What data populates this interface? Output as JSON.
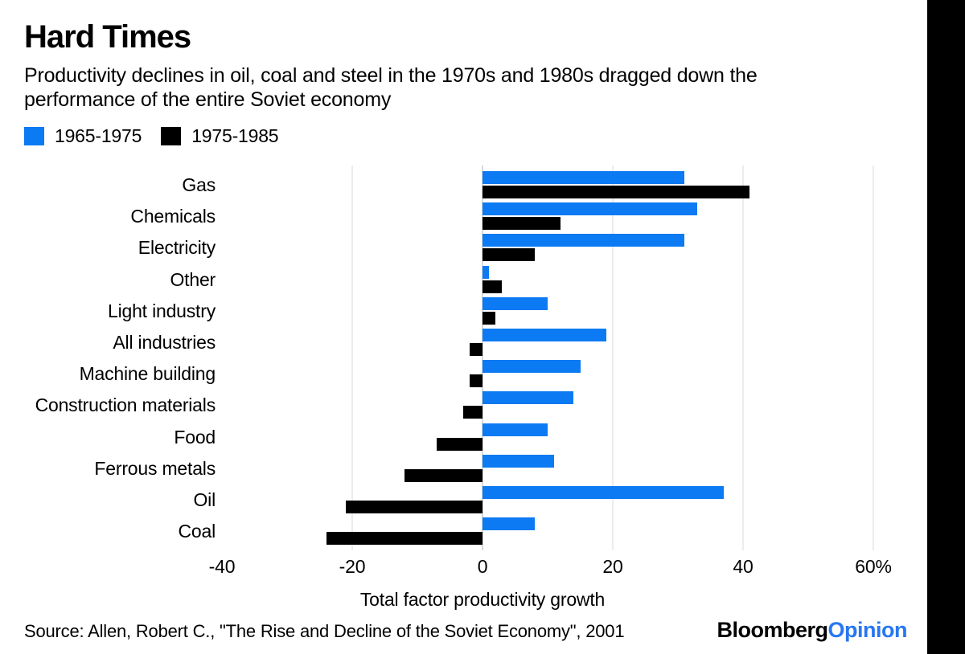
{
  "header": {
    "title": "Hard Times",
    "subtitle_line1": "Productivity declines in oil, coal and steel in the 1970s and 1980s dragged down the",
    "subtitle_line2": "performance of the entire Soviet economy"
  },
  "legend": [
    {
      "label": "1965-1975",
      "color": "#0c7af2"
    },
    {
      "label": "1975-1985",
      "color": "#000000"
    }
  ],
  "chart_data": {
    "type": "bar",
    "orientation": "horizontal",
    "title": "Hard Times",
    "xlabel": "Total factor productivity growth",
    "xlim": [
      -40,
      62
    ],
    "grid": "vertical",
    "legend_position": "top-left",
    "categories": [
      "Gas",
      "Chemicals",
      "Electricity",
      "Other",
      "Light industry",
      "All industries",
      "Machine building",
      "Construction materials",
      "Food",
      "Ferrous metals",
      "Oil",
      "Coal"
    ],
    "series": [
      {
        "name": "1965-1975",
        "color": "#0c7af2",
        "values": [
          31,
          33,
          31,
          1,
          10,
          19,
          15,
          14,
          10,
          11,
          37,
          8
        ]
      },
      {
        "name": "1975-1985",
        "color": "#000000",
        "values": [
          41,
          12,
          8,
          3,
          2,
          -2,
          -2,
          -3,
          -7,
          -12,
          -21,
          -24
        ]
      }
    ],
    "xticks": [
      {
        "value": -40,
        "label": "-40"
      },
      {
        "value": -20,
        "label": "-20"
      },
      {
        "value": 0,
        "label": "0"
      },
      {
        "value": 20,
        "label": "20"
      },
      {
        "value": 40,
        "label": "40"
      },
      {
        "value": 60,
        "label": "60%"
      }
    ]
  },
  "footer": {
    "source": "Source: Allen, Robert C., \"The Rise and Decline of the Soviet Economy\", 2001",
    "brand": {
      "bloomberg": "Bloomberg",
      "opinion": "Opinion",
      "opinion_color": "#2777f2"
    }
  }
}
